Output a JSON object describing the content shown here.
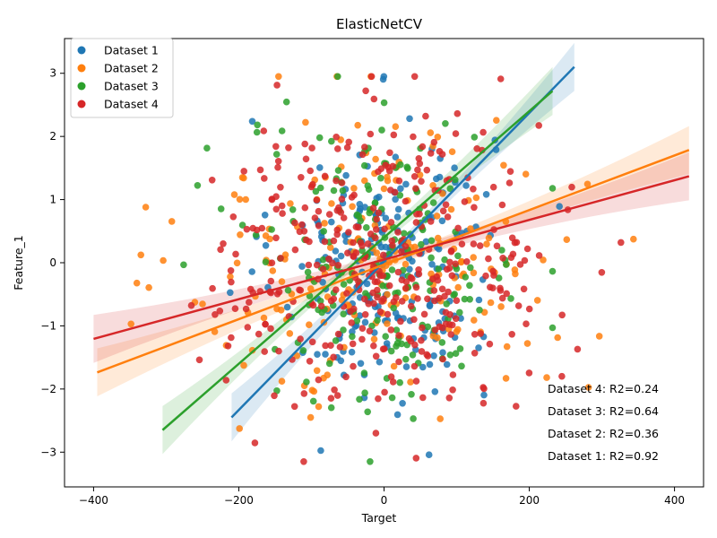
{
  "chart_data": {
    "type": "scatter",
    "title": "ElasticNetCV",
    "xlabel": "Target",
    "ylabel": "Feature_1",
    "xlim": [
      -440,
      440
    ],
    "ylim": [
      -3.55,
      3.55
    ],
    "xticks": [
      -400,
      -200,
      0,
      200,
      400
    ],
    "yticks": [
      -3,
      -2,
      -1,
      0,
      1,
      2,
      3
    ],
    "legend_position": "top-left",
    "grid": false,
    "series": [
      {
        "name": "Dataset 1",
        "color": "#1f77b4",
        "n_points": 200,
        "x_sd": 75,
        "x_range": [
          -215,
          260
        ],
        "fit": {
          "slope": 0.01176,
          "intercept": 0.02,
          "x_range": [
            -210,
            262
          ]
        }
      },
      {
        "name": "Dataset 2",
        "color": "#ff7f0e",
        "n_points": 200,
        "x_sd": 135,
        "x_range": [
          -385,
          420
        ],
        "fit": {
          "slope": 0.00432,
          "intercept": -0.03,
          "x_range": [
            -395,
            420
          ]
        }
      },
      {
        "name": "Dataset 3",
        "color": "#2ca02c",
        "n_points": 200,
        "x_sd": 95,
        "x_range": [
          -305,
          232
        ],
        "fit": {
          "slope": 0.01,
          "intercept": 0.4,
          "x_range": [
            -305,
            232
          ]
        }
      },
      {
        "name": "Dataset 4",
        "color": "#d62728",
        "n_points": 380,
        "x_sd": 115,
        "x_range": [
          -400,
          420
        ],
        "fit": {
          "slope": 0.00314,
          "intercept": 0.05,
          "x_range": [
            -400,
            420
          ]
        }
      }
    ],
    "annotations": [
      "Dataset 4: R2=0.24",
      "Dataset 3: R2=0.64",
      "Dataset 2: R2=0.36",
      "Dataset 1: R2=0.92"
    ]
  }
}
